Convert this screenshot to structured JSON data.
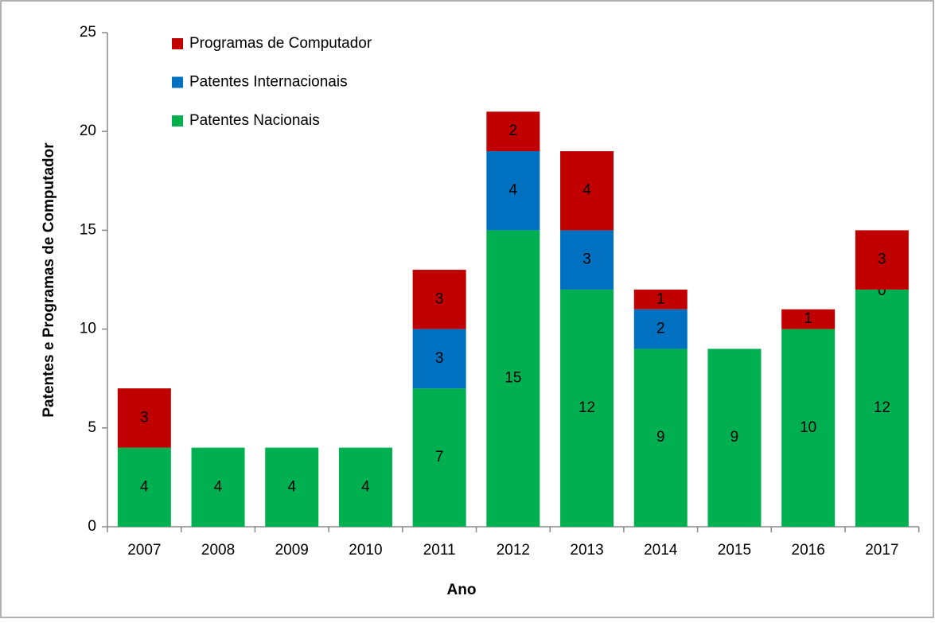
{
  "chart_data": {
    "type": "stacked_bar",
    "categories": [
      "2007",
      "2008",
      "2009",
      "2010",
      "2011",
      "2012",
      "2013",
      "2014",
      "2015",
      "2016",
      "2017"
    ],
    "series": [
      {
        "name": "Patentes Nacionais",
        "color": "#00b050",
        "values": [
          4,
          4,
          4,
          4,
          7,
          15,
          12,
          9,
          9,
          10,
          12
        ]
      },
      {
        "name": "Patentes Internacionais",
        "color": "#0070c0",
        "values": [
          null,
          null,
          null,
          null,
          3,
          4,
          3,
          2,
          null,
          null,
          0
        ]
      },
      {
        "name": "Programas de Computador",
        "color": "#c00000",
        "values": [
          3,
          null,
          null,
          null,
          3,
          2,
          4,
          1,
          null,
          1,
          3
        ]
      }
    ],
    "x_label": "Ano",
    "y_label": "Patentes e Programas de Computador",
    "ylim": [
      0,
      25
    ],
    "yticks": [
      0,
      5,
      10,
      15,
      20,
      25
    ],
    "legend": "upper left"
  }
}
